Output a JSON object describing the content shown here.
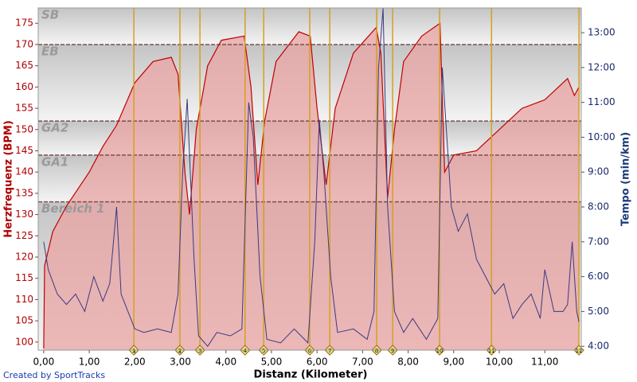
{
  "chart_data": {
    "type": "line",
    "x_label": "Distanz (Kilometer)",
    "y_label": "Herzfrequenz (BPM)",
    "y2_label": "Tempo (min/km)",
    "footer": "Created by SportTracks",
    "xlim": [
      -0.12,
      11.8
    ],
    "xticks": [
      {
        "value": 0,
        "label": "0,00"
      },
      {
        "value": 1,
        "label": "1,00"
      },
      {
        "value": 2,
        "label": "2,00"
      },
      {
        "value": 3,
        "label": "3,00"
      },
      {
        "value": 4,
        "label": "4,00"
      },
      {
        "value": 5,
        "label": "5,00"
      },
      {
        "value": 6,
        "label": "6,00"
      },
      {
        "value": 7,
        "label": "7,00"
      },
      {
        "value": 8,
        "label": "8,00"
      },
      {
        "value": 9,
        "label": "9,00"
      },
      {
        "value": 10,
        "label": "10,00"
      },
      {
        "value": 11,
        "label": "11,00"
      }
    ],
    "ylim": [
      98.1,
      178.6
    ],
    "yticks": [
      100,
      105,
      110,
      115,
      120,
      125,
      130,
      135,
      140,
      145,
      150,
      155,
      160,
      165,
      170,
      175
    ],
    "y2lim": [
      3.89,
      13.71
    ],
    "y2ticks": [
      {
        "value": 4,
        "label": "4:00"
      },
      {
        "value": 5,
        "label": "5:00"
      },
      {
        "value": 6,
        "label": "6:00"
      },
      {
        "value": 7,
        "label": "7:00"
      },
      {
        "value": 8,
        "label": "8:00"
      },
      {
        "value": 9,
        "label": "9:00"
      },
      {
        "value": 10,
        "label": "10:00"
      },
      {
        "value": 11,
        "label": "11:00"
      },
      {
        "value": 12,
        "label": "12:00"
      },
      {
        "value": 13,
        "label": "13:00"
      }
    ],
    "zone_lines": [
      170,
      152,
      144,
      133
    ],
    "zone_labels": [
      "SB",
      "EB",
      "GA2",
      "GA1",
      "Bereich 1"
    ],
    "laps": {
      "x": [
        1.98,
        2.99,
        3.43,
        4.42,
        4.83,
        5.84,
        6.28,
        7.31,
        7.66,
        8.69,
        9.83,
        11.75
      ],
      "labels": [
        "1",
        "2",
        "3",
        "4",
        "5",
        "6",
        "7",
        "8",
        "9",
        "10",
        "11",
        "12"
      ]
    },
    "series": [
      {
        "name": "Herzfrequenz",
        "color": "#c00000",
        "fill": "#e9a3a3",
        "x": [
          0,
          0.02,
          0.2,
          0.5,
          1.0,
          1.3,
          1.6,
          2.0,
          2.4,
          2.8,
          2.95,
          3.1,
          3.2,
          3.35,
          3.6,
          3.9,
          4.4,
          4.55,
          4.7,
          4.85,
          5.1,
          5.6,
          5.85,
          6.0,
          6.2,
          6.4,
          6.8,
          7.3,
          7.4,
          7.55,
          7.7,
          7.9,
          8.3,
          8.7,
          8.8,
          9.0,
          9.5,
          10.0,
          10.5,
          11.0,
          11.5,
          11.65,
          11.75
        ],
        "values": [
          98.5,
          118,
          126,
          132,
          140,
          146,
          151,
          161,
          166,
          167,
          163,
          140,
          130,
          150,
          165,
          171,
          172,
          160,
          137,
          152,
          166,
          173,
          172,
          155,
          137,
          155,
          168,
          174,
          168,
          134,
          150,
          166,
          172,
          175,
          140,
          144,
          145,
          150,
          155,
          157,
          162,
          158,
          160
        ]
      },
      {
        "name": "Tempo",
        "color": "#3a3a80",
        "axis": "y2",
        "x": [
          0,
          0.1,
          0.3,
          0.5,
          0.7,
          0.9,
          1.1,
          1.3,
          1.45,
          1.6,
          1.7,
          1.85,
          2.0,
          2.2,
          2.5,
          2.8,
          2.95,
          3.05,
          3.15,
          3.2,
          3.3,
          3.4,
          3.6,
          3.8,
          4.1,
          4.35,
          4.5,
          4.6,
          4.75,
          4.9,
          5.2,
          5.5,
          5.8,
          5.95,
          6.05,
          6.15,
          6.3,
          6.45,
          6.8,
          7.1,
          7.25,
          7.35,
          7.45,
          7.55,
          7.7,
          7.9,
          8.1,
          8.4,
          8.65,
          8.75,
          8.85,
          8.95,
          9.1,
          9.3,
          9.5,
          9.7,
          9.9,
          10.1,
          10.3,
          10.5,
          10.7,
          10.9,
          11.0,
          11.2,
          11.4,
          11.5,
          11.6,
          11.7,
          11.75
        ],
        "values": [
          7.0,
          6.2,
          5.5,
          5.2,
          5.5,
          5.0,
          6.0,
          5.3,
          5.8,
          8.0,
          5.5,
          5.0,
          4.5,
          4.4,
          4.5,
          4.4,
          5.5,
          9.0,
          11.1,
          9.5,
          6.5,
          4.3,
          4.0,
          4.4,
          4.3,
          4.5,
          11.0,
          10.0,
          6.0,
          4.2,
          4.1,
          4.5,
          4.1,
          7.0,
          10.5,
          9.0,
          6.0,
          4.4,
          4.5,
          4.2,
          5.0,
          12.0,
          13.7,
          8.0,
          5.0,
          4.4,
          4.8,
          4.2,
          4.8,
          12.0,
          10.0,
          8.0,
          7.3,
          7.8,
          6.5,
          6.0,
          5.5,
          5.8,
          4.8,
          5.2,
          5.5,
          4.8,
          6.2,
          5.0,
          5.0,
          5.2,
          7.0,
          5.0,
          4.7
        ]
      }
    ]
  }
}
